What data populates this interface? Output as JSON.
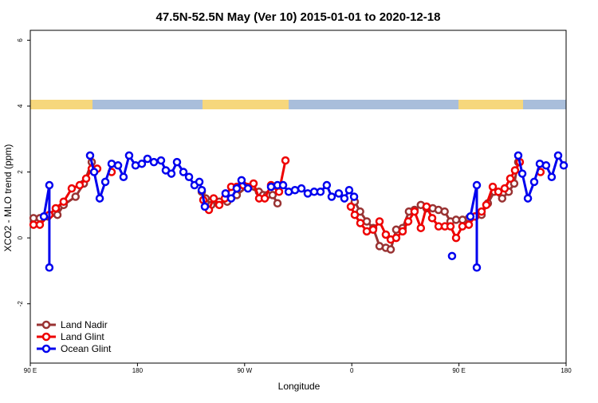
{
  "chart_data": {
    "type": "line",
    "title": "47.5N-52.5N May (Ver 10)   2015-01-01 to 2020-12-18",
    "x_label": "Longitude",
    "y_label": "XCO2 - MLO trend (ppm)",
    "xlim": [
      90,
      540
    ],
    "ylim": [
      -3.8,
      6.3
    ],
    "xticks": [
      {
        "value": 90,
        "label": "90 E"
      },
      180,
      {
        "value": 270,
        "label": "90 W"
      },
      {
        "value": 360,
        "label": "0"
      },
      {
        "value": 450,
        "label": "90 E"
      },
      {
        "value": 540,
        "label": "180"
      }
    ],
    "yticks": [
      -2,
      0,
      2,
      4,
      6
    ],
    "legend": "bottom-left",
    "series": [
      {
        "name": "Land Nadir",
        "color": "#993333",
        "x": [
          92.7,
          98,
          104.7,
          112.8,
          118,
          128,
          135,
          141.6,
          null,
          234,
          237.3,
          242,
          248.7,
          255.4,
          263.4,
          272,
          282,
          285.5,
          289,
          293.5,
          297.6,
          null,
          362.5,
          367,
          372.6,
          378,
          383.3,
          388.6,
          392.7,
          397.3,
          402.7,
          408,
          412.7,
          418,
          422.8,
          428,
          432.8,
          438,
          442.9,
          447.6,
          453,
          458.3,
          463.6,
          469,
          474.3,
          479.7,
          486.3,
          491.8,
          496.4,
          499.8
        ],
        "values": [
          0.6,
          0.6,
          0.65,
          0.7,
          1.0,
          1.25,
          1.65,
          2.3,
          null,
          1.4,
          1.2,
          1.0,
          1.1,
          1.1,
          1.3,
          1.55,
          1.4,
          1.3,
          1.3,
          1.3,
          1.05,
          null,
          1.1,
          0.8,
          0.5,
          0.3,
          -0.25,
          -0.3,
          -0.35,
          0.25,
          0.3,
          0.8,
          0.85,
          1.0,
          0.9,
          0.9,
          0.85,
          0.8,
          0.5,
          0.55,
          0.55,
          0.6,
          0.65,
          0.7,
          1.05,
          1.4,
          1.2,
          1.4,
          1.65,
          2.3
        ]
      },
      {
        "name": "Land Glint",
        "color": "#ee0000",
        "x": [
          92.7,
          98,
          106,
          111.4,
          118,
          124.8,
          131.5,
          136.9,
          141.6,
          146.2,
          null,
          158.3,
          null,
          235.3,
          240,
          244,
          248.7,
          253.4,
          258.7,
          263.4,
          268.8,
          277.5,
          282.2,
          286.9,
          292.2,
          298.9,
          304.3,
          null,
          359.2,
          362.5,
          367.2,
          372.6,
          377.9,
          383.3,
          388.6,
          392.7,
          397.3,
          402.7,
          407.4,
          412.7,
          418,
          422.8,
          427.5,
          432.9,
          438.2,
          442.9,
          447.6,
          452.9,
          458.3,
          463.6,
          469,
          473,
          478.4,
          483.1,
          488.4,
          493.1,
          497.1,
          501.1,
          null,
          518.5
        ],
        "values": [
          0.4,
          0.4,
          0.7,
          0.9,
          1.1,
          1.5,
          1.6,
          1.8,
          2.1,
          2.1,
          null,
          2.0,
          null,
          1.15,
          0.85,
          1.2,
          1.0,
          1.2,
          1.55,
          1.55,
          1.6,
          1.65,
          1.2,
          1.2,
          1.6,
          1.4,
          2.35,
          null,
          0.95,
          0.7,
          0.45,
          0.2,
          0.25,
          0.5,
          0.1,
          -0.05,
          0.0,
          0.2,
          0.5,
          0.8,
          0.3,
          0.95,
          0.6,
          0.35,
          0.35,
          0.35,
          0.0,
          0.35,
          0.4,
          0.65,
          0.8,
          1.0,
          1.55,
          1.4,
          1.5,
          1.8,
          2.05,
          2.3,
          null,
          2.0
        ]
      },
      {
        "name": "Ocean Glint",
        "color": "#0000ee",
        "x": [
          101.4,
          106,
          106,
          null,
          140.2,
          143.6,
          148.3,
          153,
          158.3,
          163.7,
          168.3,
          173,
          178.4,
          183.7,
          188.4,
          193.8,
          199.8,
          203.8,
          208.5,
          213.2,
          218.6,
          223.3,
          227.9,
          232,
          234,
          236.6,
          null,
          254,
          258.7,
          263.4,
          267.4,
          272.8,
          null,
          292.2,
          297.6,
          302.3,
          307,
          312.3,
          317.7,
          323,
          328.4,
          333.7,
          339,
          343.1,
          349.1,
          353.8,
          357.8,
          361.9,
          null,
          444.2,
          null,
          459.6,
          465,
          465,
          null,
          499.8,
          503.2,
          507.9,
          513.2,
          517.9,
          523.2,
          527.9,
          533.3,
          538
        ],
        "values": [
          0.65,
          1.6,
          -0.9,
          null,
          2.5,
          2.0,
          1.2,
          1.7,
          2.25,
          2.2,
          1.85,
          2.5,
          2.2,
          2.25,
          2.4,
          2.3,
          2.35,
          2.05,
          1.95,
          2.3,
          2.0,
          1.85,
          1.6,
          1.7,
          1.45,
          0.95,
          null,
          1.35,
          1.2,
          1.5,
          1.75,
          1.5,
          null,
          1.55,
          1.6,
          1.6,
          1.4,
          1.45,
          1.5,
          1.35,
          1.4,
          1.4,
          1.6,
          1.25,
          1.35,
          1.2,
          1.45,
          1.25,
          null,
          -0.55,
          null,
          0.65,
          1.6,
          -0.9,
          null,
          2.5,
          1.95,
          1.2,
          1.7,
          2.25,
          2.2,
          1.85,
          2.5,
          2.2
        ]
      }
    ]
  }
}
